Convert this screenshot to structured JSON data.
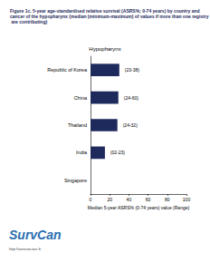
{
  "chart_data": {
    "type": "bar",
    "title": "Figure 1c. 5-year age-standardised relative survival (ASRS%; 0-74 years) by country and cancer of the hypopharynx (median (minimum-maximum) of values if more than one registry are contributing)",
    "subtitle": "Hypopharynx",
    "categories": [
      "Republic of Korea",
      "China",
      "Thailand",
      "India",
      "Singapore"
    ],
    "values": [
      30,
      29,
      28,
      15,
      null
    ],
    "range_labels": [
      "(23-38)",
      "(24-60)",
      "(24-32)",
      "(02-23)",
      null
    ],
    "color": "#1f2a5c",
    "orientation": "horizontal",
    "xlabel": "Median 5-year ASRS% (0-74 years) value (Range)",
    "xlim": [
      0,
      100
    ],
    "xticks": [
      0,
      20,
      40,
      60,
      80,
      100
    ],
    "grid": false,
    "logo": "SurvCan",
    "url": "http://survcan.iarc.fr"
  }
}
